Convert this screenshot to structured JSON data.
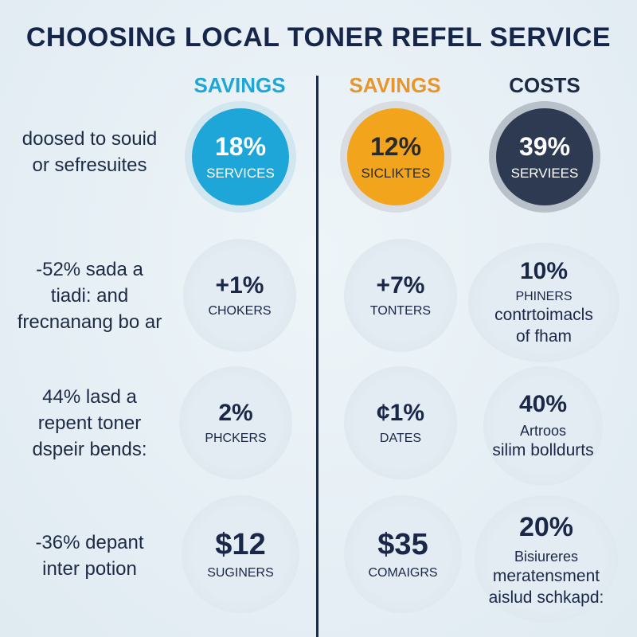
{
  "title": "CHOOSING LOCAL TONER REFEL SERVICE",
  "columns": [
    {
      "label": "SAVINGS",
      "color": "#1ea6d8"
    },
    {
      "label": "SAVINGS",
      "color": "#e8952a"
    },
    {
      "label": "COSTS",
      "color": "#1d2a44"
    }
  ],
  "rows": [
    {
      "label_lines": [
        "doosed to souid",
        "or sefresuites"
      ],
      "cells": [
        {
          "value": "18%",
          "sub": "SERVICES"
        },
        {
          "value": "12%",
          "sub": "SICLIKTES"
        },
        {
          "value": "39%",
          "sub": "SERVIEES"
        }
      ]
    },
    {
      "label_lines": [
        "-52% sada a",
        "tiadi: and",
        "frecnanang bo ar"
      ],
      "cells": [
        {
          "value": "+1%",
          "sub": "CHOKERS"
        },
        {
          "value": "+7%",
          "sub": "TONTERS"
        },
        {
          "value": "10%",
          "sub": "PHINERS",
          "desc": [
            "contrtoimacls",
            "of fham"
          ]
        }
      ]
    },
    {
      "label_lines": [
        "44% lasd a",
        "repent toner",
        "dspeir bends:"
      ],
      "cells": [
        {
          "value": "2%",
          "sub": "PHCKERS"
        },
        {
          "value": "¢1%",
          "sub": "DATES"
        },
        {
          "value": "40%",
          "sub": "Artroos",
          "desc": [
            "silim bolldurts"
          ]
        }
      ]
    },
    {
      "label_lines": [
        "-36% depant",
        "inter potion"
      ],
      "cells": [
        {
          "value": "$12",
          "sub": "SUGINERS"
        },
        {
          "value": "$35",
          "sub": "COMAIGRS"
        },
        {
          "value": "20%",
          "sub": "Bisiureres",
          "desc": [
            "meratensment",
            "aislud schkapd:"
          ]
        }
      ]
    }
  ]
}
